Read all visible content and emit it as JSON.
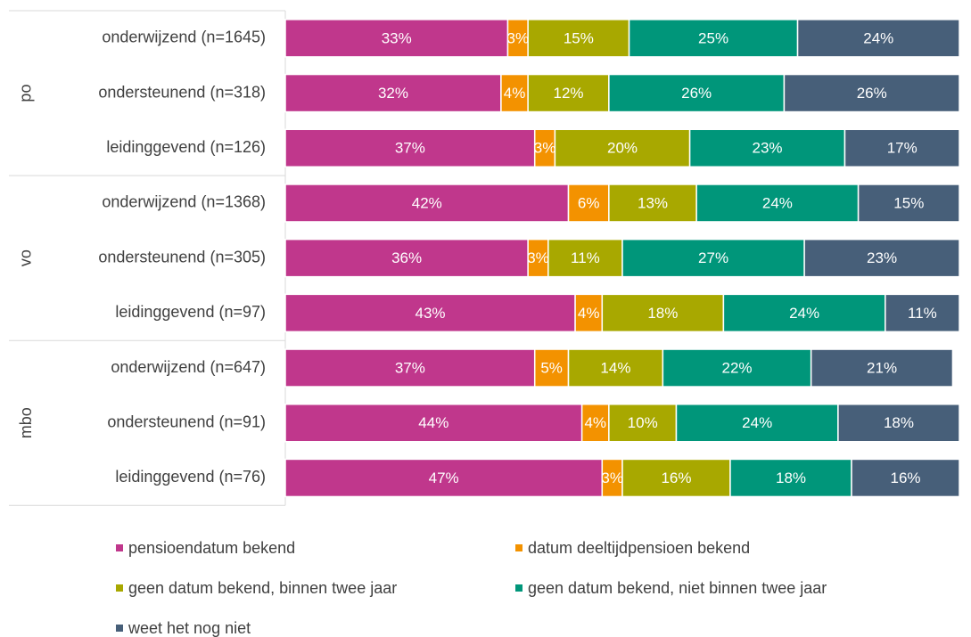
{
  "chart_data": {
    "type": "bar",
    "orientation": "horizontal",
    "stacked": true,
    "groups": [
      {
        "label": "po",
        "categories": [
          "onderwijzend (n=1645)",
          "ondersteunend (n=318)",
          "leidinggevend (n=126)"
        ]
      },
      {
        "label": "vo",
        "categories": [
          "onderwijzend (n=1368)",
          "ondersteunend (n=305)",
          "leidinggevend (n=97)"
        ]
      },
      {
        "label": "mbo",
        "categories": [
          "onderwijzend (n=647)",
          "ondersteunend (n=91)",
          "leidinggevend (n=76)"
        ]
      }
    ],
    "series": [
      {
        "name": "pensioendatum bekend",
        "color": "#c0378c",
        "values": [
          33,
          32,
          37,
          42,
          36,
          43,
          37,
          44,
          47
        ],
        "value_labels": [
          "33%",
          "32%",
          "37%",
          "42%",
          "36%",
          "43%",
          "37%",
          "44%",
          "47%"
        ]
      },
      {
        "name": "datum deeltijdpensioen bekend",
        "color": "#f39200",
        "values": [
          3,
          4,
          3,
          6,
          3,
          4,
          5,
          4,
          3
        ],
        "value_labels": [
          "3%",
          "4%",
          "3%",
          "6%",
          "3%",
          "4%",
          "5%",
          "4%",
          "3%"
        ]
      },
      {
        "name": "geen datum bekend, binnen twee jaar",
        "color": "#a8a800",
        "values": [
          15,
          12,
          20,
          13,
          11,
          18,
          14,
          10,
          16
        ],
        "value_labels": [
          "15%",
          "12%",
          "20%",
          "13%",
          "11%",
          "18%",
          "14%",
          "10%",
          "16%"
        ]
      },
      {
        "name": "geen datum bekend, niet binnen twee jaar",
        "color": "#00967a",
        "values": [
          25,
          26,
          23,
          24,
          27,
          24,
          22,
          24,
          18
        ],
        "value_labels": [
          "25%",
          "26%",
          "23%",
          "24%",
          "27%",
          "24%",
          "22%",
          "24%",
          "18%"
        ]
      },
      {
        "name": "weet het nog niet",
        "color": "#475f79",
        "values": [
          24,
          26,
          17,
          15,
          23,
          11,
          21,
          18,
          16
        ],
        "value_labels": [
          "24%",
          "26%",
          "17%",
          "15%",
          "23%",
          "11%",
          "21%",
          "18%",
          "16%"
        ]
      }
    ],
    "legend": "bottom"
  }
}
